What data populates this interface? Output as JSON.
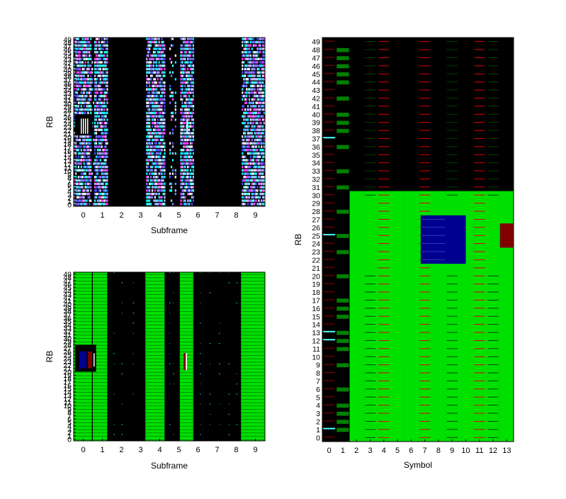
{
  "chart_data": [
    {
      "type": "heatmap",
      "name": "top-left",
      "xlabel": "Subframe",
      "ylabel": "RB",
      "xticks": [
        "0",
        "1",
        "2",
        "3",
        "4",
        "5",
        "6",
        "7",
        "8",
        "9"
      ],
      "xlim": [
        -0.5,
        9.5
      ],
      "ylim": [
        0,
        49
      ],
      "yticks": [
        "0",
        "1",
        "2",
        "3",
        "4",
        "5",
        "6",
        "7",
        "8",
        "9",
        "10",
        "11",
        "12",
        "13",
        "14",
        "15",
        "16",
        "17",
        "18",
        "19",
        "20",
        "21",
        "22",
        "23",
        "24",
        "25",
        "26",
        "27",
        "28",
        "29",
        "30",
        "31",
        "32",
        "33",
        "34",
        "35",
        "36",
        "37",
        "38",
        "39",
        "40",
        "41",
        "42",
        "43",
        "44",
        "45",
        "46",
        "47",
        "48",
        "49"
      ],
      "colors": [
        "#5050ff",
        "#ff40ff",
        "#40ffff",
        "#ffffff",
        "#8080ff",
        "#00ffff",
        "#c0c0ff"
      ],
      "dark_colors": [
        "#000000"
      ],
      "filled_subframes": [
        0,
        1,
        4,
        5.6,
        9
      ],
      "grid": false
    },
    {
      "type": "heatmap",
      "name": "bottom-left",
      "xlabel": "Subframe",
      "ylabel": "RB",
      "xticks": [
        "0",
        "1",
        "2",
        "3",
        "4",
        "5",
        "6",
        "7",
        "8",
        "9"
      ],
      "xlim": [
        -0.5,
        9.5
      ],
      "ylim": [
        0,
        49
      ],
      "yticks": [
        "0",
        "1",
        "2",
        "3",
        "4",
        "5",
        "6",
        "7",
        "8",
        "9",
        "10",
        "11",
        "12",
        "13",
        "14",
        "15",
        "16",
        "17",
        "18",
        "19",
        "20",
        "21",
        "22",
        "23",
        "24",
        "25",
        "26",
        "27",
        "28",
        "29",
        "30",
        "31",
        "32",
        "33",
        "34",
        "35",
        "36",
        "37",
        "38",
        "39",
        "40",
        "41",
        "42",
        "43",
        "44",
        "45",
        "46",
        "47",
        "48",
        "49"
      ],
      "colors": [
        "#00e000",
        "#008000",
        "#00ffff",
        "#000080",
        "#800000",
        "#ff0000"
      ],
      "grid": false
    },
    {
      "type": "heatmap",
      "name": "right",
      "xlabel": "Symbol",
      "ylabel": "RB",
      "xticks": [
        "0",
        "1",
        "2",
        "3",
        "4",
        "5",
        "6",
        "7",
        "8",
        "9",
        "10",
        "11",
        "12",
        "13"
      ],
      "xlim": [
        -0.5,
        13.5
      ],
      "ylim": [
        0,
        49
      ],
      "yticks": [
        "0",
        "1",
        "2",
        "3",
        "4",
        "5",
        "6",
        "7",
        "8",
        "9",
        "10",
        "11",
        "12",
        "13",
        "14",
        "15",
        "16",
        "17",
        "18",
        "19",
        "20",
        "21",
        "22",
        "23",
        "24",
        "25",
        "26",
        "27",
        "28",
        "29",
        "30",
        "31",
        "32",
        "33",
        "34",
        "35",
        "36",
        "37",
        "38",
        "39",
        "40",
        "41",
        "42",
        "43",
        "44",
        "45",
        "46",
        "47",
        "48",
        "49"
      ],
      "colors": {
        "data": "#00e000",
        "reference": "#e00000",
        "control": "#800000",
        "allocation": "#000090",
        "sync": "#40ffff",
        "grid": "#004000",
        "empty": "#000000"
      },
      "dark_band_rb": [
        21,
        29
      ],
      "grid": false
    }
  ]
}
